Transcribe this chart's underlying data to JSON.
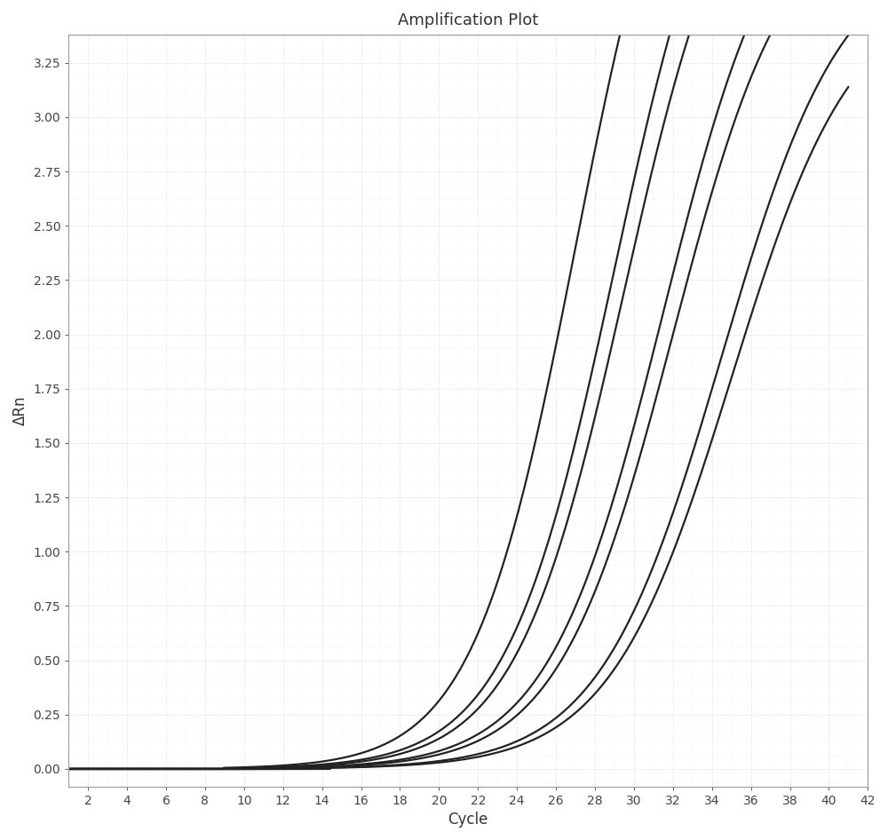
{
  "title": "Amplification Plot",
  "xlabel": "Cycle",
  "ylabel": "ΔRn",
  "xlim": [
    1,
    42
  ],
  "ylim": [
    -0.08,
    3.38
  ],
  "xticks": [
    2,
    4,
    6,
    8,
    10,
    12,
    14,
    16,
    18,
    20,
    22,
    24,
    26,
    28,
    30,
    32,
    34,
    36,
    38,
    40,
    42
  ],
  "yticks": [
    0.0,
    0.25,
    0.5,
    0.75,
    1.0,
    1.25,
    1.5,
    1.75,
    2.0,
    2.25,
    2.5,
    2.75,
    3.0,
    3.25
  ],
  "background_color": "#ffffff",
  "grid_color": "#cccccc",
  "grid_color_minor": "#e0e0e0",
  "line_color": "#222222",
  "curves": [
    {
      "midpoint": 27.0,
      "rate": 0.38,
      "ymax": 4.8
    },
    {
      "midpoint": 29.0,
      "rate": 0.36,
      "ymax": 4.6
    },
    {
      "midpoint": 29.5,
      "rate": 0.36,
      "ymax": 4.4
    },
    {
      "midpoint": 31.5,
      "rate": 0.34,
      "ymax": 4.2
    },
    {
      "midpoint": 32.0,
      "rate": 0.34,
      "ymax": 4.0
    },
    {
      "midpoint": 34.5,
      "rate": 0.32,
      "ymax": 3.8
    },
    {
      "midpoint": 35.0,
      "rate": 0.32,
      "ymax": 3.6
    }
  ],
  "title_fontsize": 13,
  "label_fontsize": 12,
  "tick_fontsize": 10,
  "line_width": 1.6,
  "figsize": [
    10.0,
    9.46
  ],
  "dpi": 100
}
